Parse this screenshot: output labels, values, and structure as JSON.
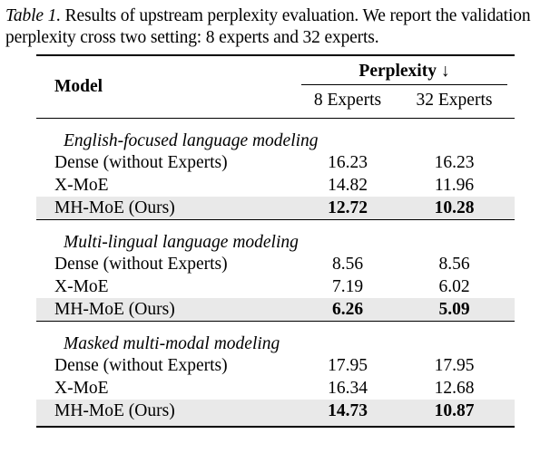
{
  "caption": {
    "label": "Table 1.",
    "text": " Results of upstream perplexity evaluation. We report the validation perplexity cross two setting: 8 experts and 32 experts."
  },
  "table": {
    "header": {
      "model": "Model",
      "group": "Perplexity ↓",
      "cols": [
        "8 Experts",
        "32 Experts"
      ]
    },
    "sections": [
      {
        "title": "English-focused language modeling",
        "rows": [
          {
            "model": "Dense (without Experts)",
            "v8": "16.23",
            "v32": "16.23"
          },
          {
            "model": "X-MoE",
            "v8": "14.82",
            "v32": "11.96"
          },
          {
            "model": "MH-MoE (Ours)",
            "v8": "12.72",
            "v32": "10.28"
          }
        ]
      },
      {
        "title": "Multi-lingual language modeling",
        "rows": [
          {
            "model": "Dense (without Experts)",
            "v8": "8.56",
            "v32": "8.56"
          },
          {
            "model": "X-MoE",
            "v8": "7.19",
            "v32": "6.02"
          },
          {
            "model": "MH-MoE (Ours)",
            "v8": "6.26",
            "v32": "5.09"
          }
        ]
      },
      {
        "title": "Masked multi-modal modeling",
        "rows": [
          {
            "model": "Dense (without Experts)",
            "v8": "17.95",
            "v32": "17.95"
          },
          {
            "model": "X-MoE",
            "v8": "16.34",
            "v32": "12.68"
          },
          {
            "model": "MH-MoE (Ours)",
            "v8": "14.73",
            "v32": "10.87"
          }
        ]
      }
    ]
  },
  "colors": {
    "highlight_row": "#e9e9e9"
  }
}
